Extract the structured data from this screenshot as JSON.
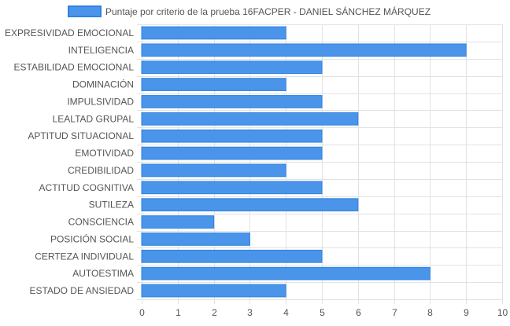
{
  "chart_data": {
    "type": "bar",
    "orientation": "horizontal",
    "categories": [
      "EXPRESIVIDAD EMOCIONAL",
      "INTELIGENCIA",
      "ESTABILIDAD EMOCIONAL",
      "DOMINACIÓN",
      "IMPULSIVIDAD",
      "LEALTAD GRUPAL",
      "APTITUD SITUACIONAL",
      "EMOTIVIDAD",
      "CREDIBILIDAD",
      "ACTITUD COGNITIVA",
      "SUTILEZA",
      "CONSCIENCIA",
      "POSICIÓN SOCIAL",
      "CERTEZA INDIVIDUAL",
      "AUTOESTIMA",
      "ESTADO DE ANSIEDAD"
    ],
    "series": [
      {
        "name": "Puntaje por criterio de la prueba 16FACPER - DANIEL SÁNCHEZ MÁRQUEZ",
        "values": [
          4,
          9,
          5,
          4,
          5,
          6,
          5,
          5,
          4,
          5,
          6,
          2,
          3,
          5,
          8,
          4
        ],
        "color": "#4a95ea",
        "border_color": "#2f82e0"
      }
    ],
    "xlim": [
      0,
      10
    ],
    "x_ticks": [
      "0",
      "1",
      "2",
      "3",
      "4",
      "5",
      "6",
      "7",
      "8",
      "9",
      "10"
    ],
    "xlabel": "",
    "ylabel": "",
    "grid": true,
    "legend_position": "top"
  },
  "colors": {
    "grid": "#e2e2e2",
    "text": "#555555"
  }
}
